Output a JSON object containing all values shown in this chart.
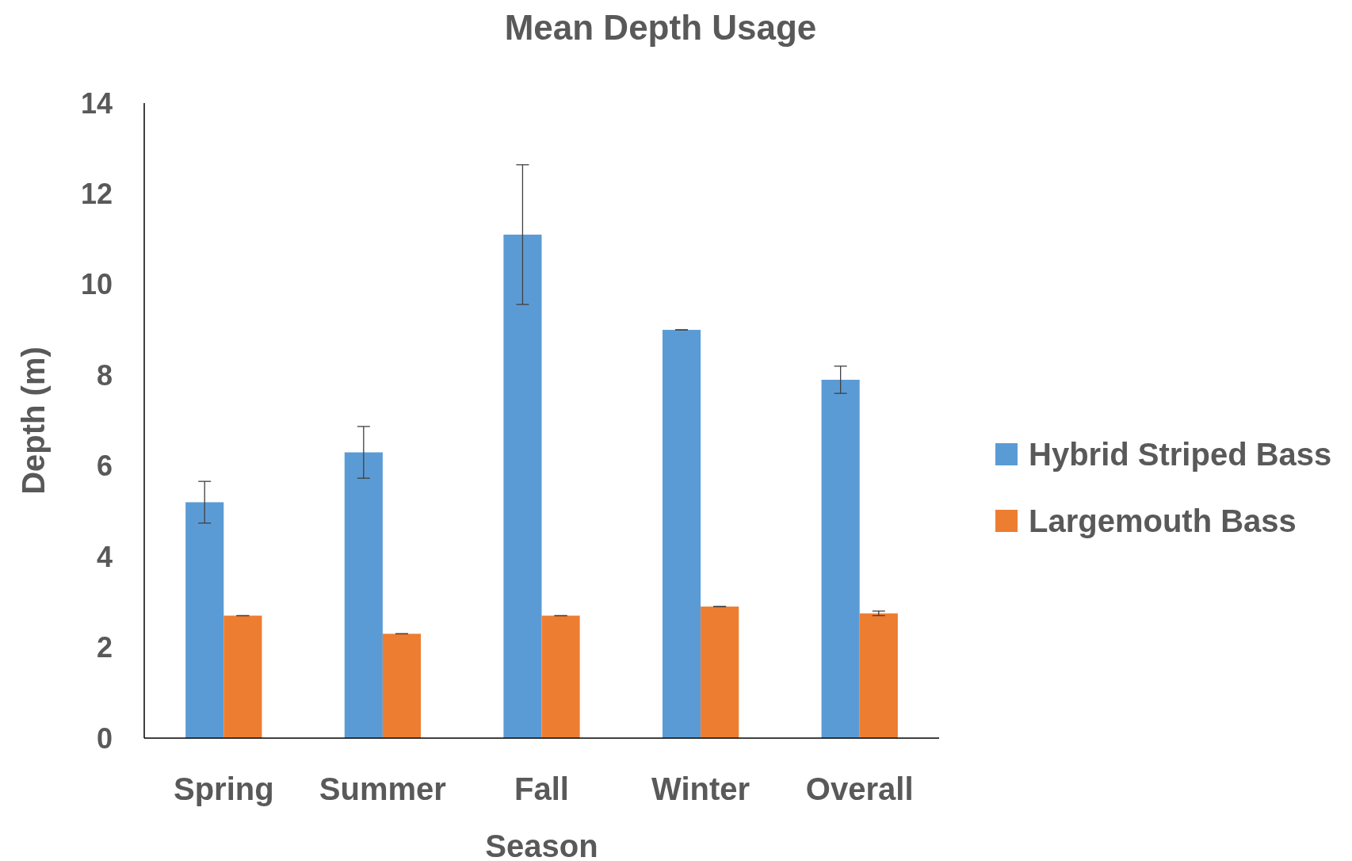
{
  "chart_data": {
    "type": "bar",
    "title": "Mean Depth Usage",
    "xlabel": "Season",
    "ylabel": "Depth (m)",
    "categories": [
      "Spring",
      "Summer",
      "Fall",
      "Winter",
      "Overall"
    ],
    "series": [
      {
        "name": "Hybrid Striped Bass",
        "color": "#5b9bd5",
        "values": [
          5.2,
          6.3,
          11.1,
          9.0,
          7.9
        ],
        "errors": [
          0.46,
          0.57,
          1.54,
          0,
          0.3
        ]
      },
      {
        "name": "Largemouth Bass",
        "color": "#ed7d31",
        "values": [
          2.7,
          2.3,
          2.7,
          2.9,
          2.75
        ],
        "errors": [
          0,
          0,
          0,
          0,
          0.05
        ]
      }
    ],
    "ylim": [
      0,
      14
    ],
    "yticks": [
      0,
      2,
      4,
      6,
      8,
      10,
      12,
      14
    ],
    "grid": false,
    "legend": "right"
  }
}
